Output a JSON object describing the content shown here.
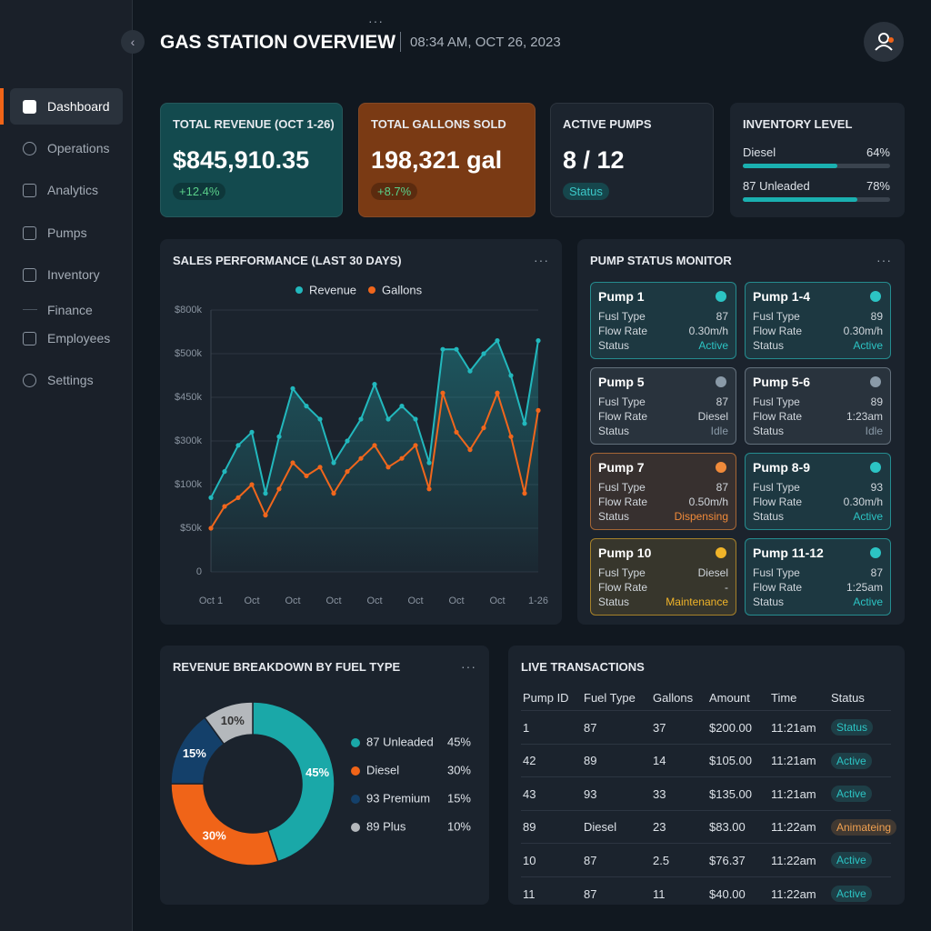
{
  "header": {
    "title": "GAS STATION OVERVIEW",
    "datetime": "08:34 AM, OCT 26, 2023"
  },
  "nav": [
    "Dashboard",
    "Operations",
    "Analytics",
    "Pumps",
    "Inventory",
    "Finance",
    "Employees",
    "Settings"
  ],
  "kpis": [
    {
      "title": "TOTAL REVENUE (OCT 1-26)",
      "value": "$845,910.35",
      "badge": "+12.4%",
      "color": "#134a4e"
    },
    {
      "title": "TOTAL GALLONS SOLD",
      "value": "198,321 gal",
      "badge": "+8.7%",
      "color": "#7a3a14"
    },
    {
      "title": "ACTIVE PUMPS",
      "value": "8 / 12",
      "badge": "Status",
      "color": "#1c242e"
    }
  ],
  "inventory": {
    "title": "INVENTORY LEVEL",
    "items": [
      {
        "name": "Diesel",
        "value": 64,
        "label": "64%"
      },
      {
        "name": "87 Unleaded",
        "value": 78,
        "label": "78%"
      }
    ],
    "color": "#1ab0b0"
  },
  "chart_data": [
    {
      "type": "line",
      "title": "SALES PERFORMANCE (LAST 30 DAYS)",
      "categories": [
        "Oct 1",
        null,
        null,
        "Oct",
        null,
        null,
        "Oct",
        null,
        null,
        "Oct",
        null,
        null,
        "Oct",
        null,
        null,
        "Oct",
        null,
        null,
        "Oct",
        null,
        null,
        "Oct",
        null,
        null,
        "1-26"
      ],
      "series": [
        {
          "name": "Revenue",
          "color": "#22b8bd",
          "values": [
            1.7,
            2.3,
            2.9,
            3.2,
            1.8,
            3.1,
            4.2,
            3.8,
            3.5,
            2.5,
            3.0,
            3.5,
            4.3,
            3.5,
            3.8,
            3.5,
            2.5,
            5.1,
            5.1,
            4.6,
            5.0,
            5.3,
            4.5,
            3.4,
            5.3
          ]
        },
        {
          "name": "Gallons",
          "color": "#f0661c",
          "values": [
            1.0,
            1.5,
            1.7,
            2.0,
            1.3,
            1.9,
            2.5,
            2.2,
            2.4,
            1.8,
            2.3,
            2.6,
            2.9,
            2.4,
            2.6,
            2.9,
            1.9,
            4.1,
            3.2,
            2.8,
            3.3,
            4.1,
            3.1,
            1.8,
            3.7
          ]
        }
      ],
      "ylim": [
        0,
        6
      ],
      "yticks": [
        {
          "value": 0,
          "label": "0"
        },
        {
          "value": 1,
          "label": "$50k"
        },
        {
          "value": 2,
          "label": "$100k"
        },
        {
          "value": 3,
          "label": "$300k"
        },
        {
          "value": 4,
          "label": "$450k"
        },
        {
          "value": 5,
          "label": "$500k"
        },
        {
          "value": 6,
          "label": "$800k"
        }
      ],
      "grid": true,
      "legend": "top"
    },
    {
      "type": "pie",
      "title": "REVENUE BREAKDOWN BY FUEL TYPE",
      "categories": [
        "87 Unleaded",
        "Diesel",
        "93 Premium",
        "89 Plus"
      ],
      "values": [
        45,
        30,
        15,
        10
      ],
      "value_labels": [
        "45%",
        "30%",
        "15%",
        "10%"
      ],
      "colors": [
        "#1aa8a8",
        "#f06418",
        "#14406a",
        "#b4b8bc"
      ],
      "donut": true,
      "legend": "right"
    }
  ],
  "pumps": {
    "title": "PUMP STATUS MONITOR",
    "labels": [
      "Fusl Type",
      "Flow Rate",
      "Status"
    ],
    "items": [
      {
        "name": "Pump 1",
        "fuel": "87",
        "flow": "0.30m/h",
        "status": "Active",
        "color": "#2cc4c4"
      },
      {
        "name": "Pump 1-4",
        "fuel": "89",
        "flow": "0.30m/h",
        "status": "Active",
        "color": "#2cc4c4"
      },
      {
        "name": "Pump 5",
        "fuel": "87",
        "flow": "Diesel",
        "status": "Idle",
        "color": "#8a9aa8"
      },
      {
        "name": "Pump 5-6",
        "fuel": "89",
        "flow": "1:23am",
        "status": "Idle",
        "color": "#8a9aa8"
      },
      {
        "name": "Pump 7",
        "fuel": "87",
        "flow": "0.50m/h",
        "status": "Dispensing",
        "color": "#f08a3a"
      },
      {
        "name": "Pump 8-9",
        "fuel": "93",
        "flow": "0.30m/h",
        "status": "Active",
        "color": "#2cc4c4"
      },
      {
        "name": "Pump 10",
        "fuel": "Diesel",
        "flow": "-",
        "status": "Maintenance",
        "color": "#f0b429"
      },
      {
        "name": "Pump 11-12",
        "fuel": "87",
        "flow": "1:25am",
        "status": "Active",
        "color": "#2cc4c4"
      }
    ]
  },
  "transactions": {
    "title": "LIVE TRANSACTIONS",
    "columns": [
      "Pump ID",
      "Fuel Type",
      "Gallons",
      "Amount",
      "Time",
      "Status"
    ],
    "rows": [
      [
        "1",
        "87",
        "37",
        "$200.00",
        "11:21am",
        "Status"
      ],
      [
        "42",
        "89",
        "14",
        "$105.00",
        "11:21am",
        "Active"
      ],
      [
        "43",
        "93",
        "33",
        "$135.00",
        "11:21am",
        "Active"
      ],
      [
        "89",
        "Diesel",
        "23",
        "$83.00",
        "11:22am",
        "Animateing"
      ],
      [
        "10",
        "87",
        "2.5",
        "$76.37",
        "11:22am",
        "Active"
      ],
      [
        "11",
        "87",
        "11",
        "$40.00",
        "11:22am",
        "Active"
      ]
    ],
    "status_colors": [
      "#2cc4c4",
      "#2cc4c4",
      "#2cc4c4",
      "#f0a050",
      "#2cc4c4",
      "#2cc4c4"
    ]
  }
}
